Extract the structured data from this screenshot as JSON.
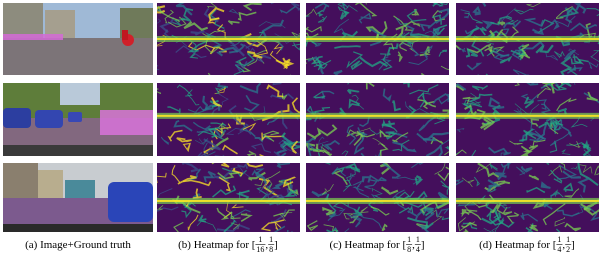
{
  "captions": [
    {
      "tokens": [
        "(a) Image+Ground truth"
      ]
    },
    {
      "tokens": [
        "(b) Heatmap for [",
        {
          "num": "1",
          "den": "16"
        },
        ",",
        {
          "num": "1",
          "den": "8"
        },
        "]"
      ]
    },
    {
      "tokens": [
        "(c) Heatmap for [",
        {
          "num": "1",
          "den": "8"
        },
        ",",
        {
          "num": "1",
          "den": "4"
        },
        "]"
      ]
    },
    {
      "tokens": [
        "(d) Heatmap for [",
        {
          "num": "1",
          "den": "4"
        },
        ",",
        {
          "num": "1",
          "den": "2"
        },
        "]"
      ]
    }
  ]
}
